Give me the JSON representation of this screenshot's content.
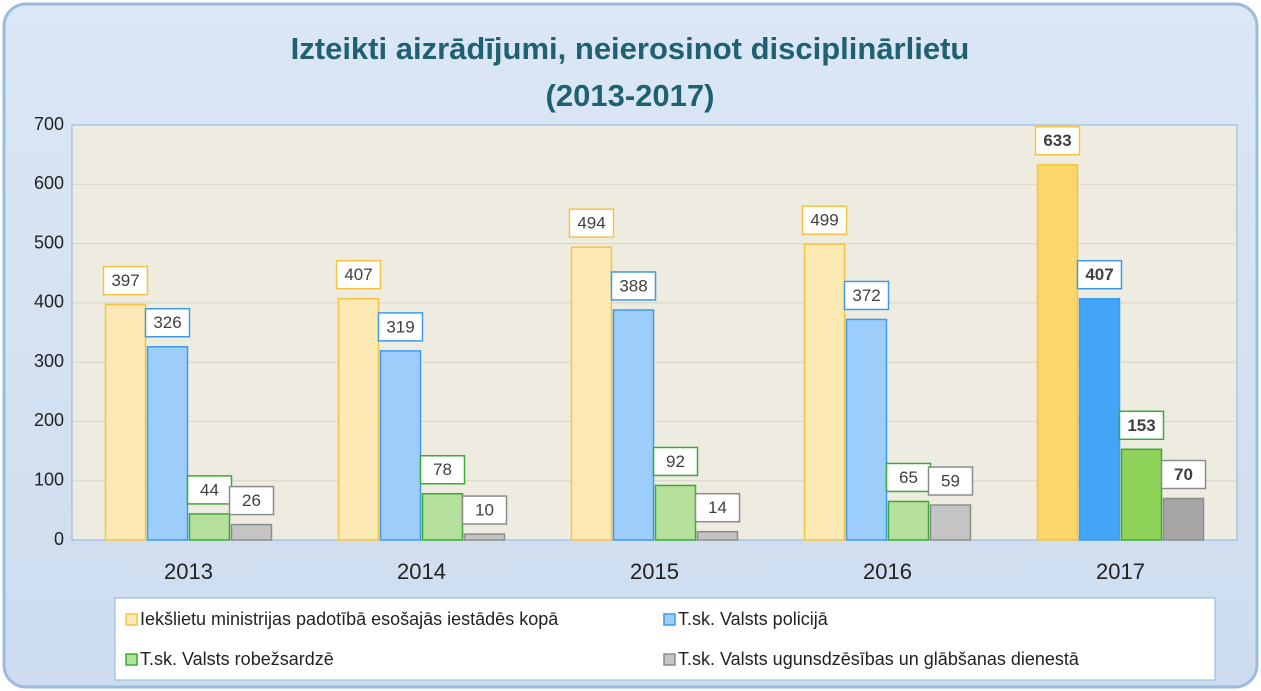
{
  "chart_data": {
    "type": "bar",
    "title": [
      "Izteikti aizrādījumi, neierosinot disciplinārlietu",
      "(2013-2017)"
    ],
    "categories": [
      "2013",
      "2014",
      "2015",
      "2016",
      "2017"
    ],
    "series": [
      {
        "name": "Iekšlietu ministrijas padotībā esošajās iestādēs kopā",
        "color": "#fde9b4",
        "border": "#f5c342",
        "colors": [
          "#fde9b4",
          "#fde9b4",
          "#fde9b4",
          "#fde9b4",
          "#fdd66b"
        ],
        "values": [
          397,
          407,
          494,
          499,
          633
        ]
      },
      {
        "name": "T.sk. Valsts policijā",
        "color": "#9dcdfb",
        "border": "#3d9be9",
        "colors": [
          "#9dcdfb",
          "#9dcdfb",
          "#9dcdfb",
          "#9dcdfb",
          "#43a5f5"
        ],
        "values": [
          326,
          319,
          388,
          372,
          407
        ]
      },
      {
        "name": "T.sk. Valsts robežsardzē",
        "color": "#b5e09c",
        "border": "#3aaa35",
        "colors": [
          "#b5e09c",
          "#b5e09c",
          "#b5e09c",
          "#b5e09c",
          "#8fd25a"
        ],
        "values": [
          44,
          78,
          92,
          65,
          153
        ]
      },
      {
        "name": "T.sk. Valsts ugunsdzēsības un glābšanas dienestā",
        "color": "#c4c4c4",
        "border": "#8c8c8c",
        "colors": [
          "#c4c4c4",
          "#c4c4c4",
          "#c4c4c4",
          "#c4c4c4",
          "#a6a6a6"
        ],
        "values": [
          26,
          10,
          14,
          59,
          70
        ]
      }
    ],
    "bold_labels": [
      false,
      false,
      false,
      false,
      true
    ],
    "ylim": [
      0,
      700
    ],
    "yticks": [
      0,
      100,
      200,
      300,
      400,
      500,
      600,
      700
    ],
    "grid": true,
    "legend": "bottom"
  }
}
